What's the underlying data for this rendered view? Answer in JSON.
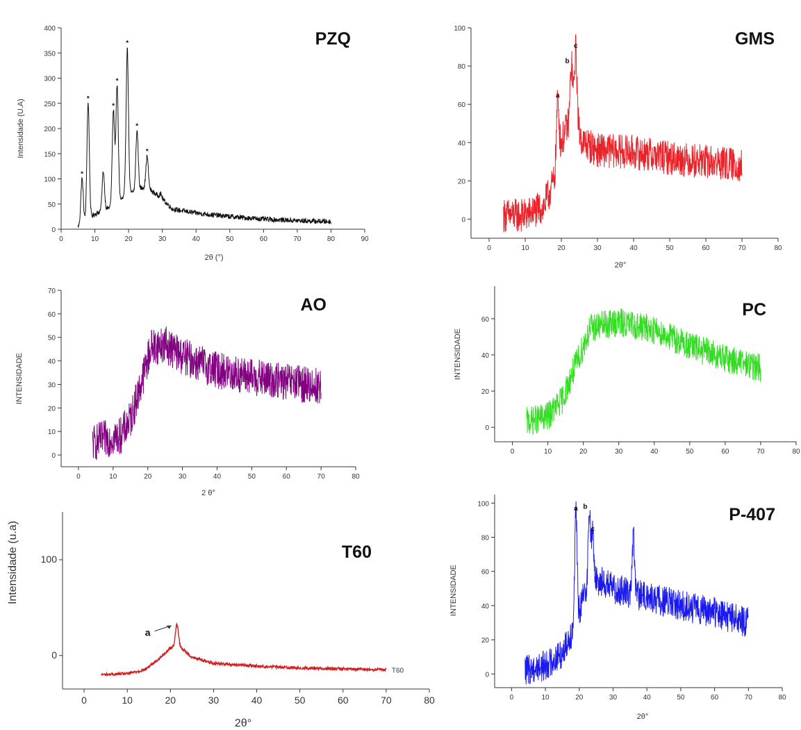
{
  "chart_data": [
    {
      "type": "line",
      "id": "pzq",
      "title": "PZQ",
      "xlabel": "2θ (°)",
      "ylabel": "Intensidade (U.A)",
      "xlim": [
        0,
        90
      ],
      "ylim": [
        0,
        400
      ],
      "xticks": [
        0,
        10,
        20,
        30,
        40,
        50,
        60,
        70,
        80,
        90
      ],
      "yticks": [
        0,
        50,
        100,
        150,
        200,
        250,
        300,
        350,
        400
      ],
      "color": "#111111",
      "x_range": [
        5,
        80
      ],
      "peaks": [
        {
          "x": 6.2,
          "y": 100,
          "label": "*"
        },
        {
          "x": 8.0,
          "y": 250,
          "label": "*"
        },
        {
          "x": 12.5,
          "y": 115,
          "label": ""
        },
        {
          "x": 15.5,
          "y": 235,
          "label": "*"
        },
        {
          "x": 16.6,
          "y": 285,
          "label": "*"
        },
        {
          "x": 19.6,
          "y": 360,
          "label": "*"
        },
        {
          "x": 22.5,
          "y": 195,
          "label": "*"
        },
        {
          "x": 25.5,
          "y": 145,
          "label": "*"
        },
        {
          "x": 29.5,
          "y": 70,
          "label": ""
        }
      ],
      "baseline": [
        [
          5,
          5
        ],
        [
          10,
          30
        ],
        [
          15,
          45
        ],
        [
          20,
          70
        ],
        [
          25,
          85
        ],
        [
          30,
          60
        ],
        [
          33,
          40
        ],
        [
          40,
          32
        ],
        [
          50,
          25
        ],
        [
          60,
          20
        ],
        [
          70,
          17
        ],
        [
          80,
          15
        ]
      ],
      "noise": 5
    },
    {
      "type": "line",
      "id": "gms",
      "title": "GMS",
      "xlabel": "2θ°",
      "ylabel": "",
      "xlim": [
        -5,
        80
      ],
      "ylim": [
        -10,
        100
      ],
      "xticks": [
        0,
        10,
        20,
        30,
        40,
        50,
        60,
        70,
        80
      ],
      "yticks": [
        0,
        20,
        40,
        60,
        80,
        100
      ],
      "color": "#e8232a",
      "x_range": [
        4,
        70
      ],
      "peaks": [
        {
          "x": 19.0,
          "y": 62,
          "label": "a"
        },
        {
          "x": 22.8,
          "y": 80,
          "label": "b"
        },
        {
          "x": 24.0,
          "y": 88,
          "label": "c"
        }
      ],
      "baseline": [
        [
          4,
          2
        ],
        [
          10,
          2
        ],
        [
          15,
          6
        ],
        [
          18,
          20
        ],
        [
          20,
          40
        ],
        [
          23,
          55
        ],
        [
          26,
          40
        ],
        [
          30,
          36
        ],
        [
          40,
          35
        ],
        [
          50,
          32
        ],
        [
          60,
          30
        ],
        [
          70,
          28
        ]
      ],
      "noise": 9
    },
    {
      "type": "line",
      "id": "ao",
      "title": "AO",
      "xlabel": "2 θ°",
      "ylabel": "INTENSIDADE",
      "xlim": [
        -5,
        80
      ],
      "ylim": [
        -5,
        70
      ],
      "xticks": [
        0,
        10,
        20,
        30,
        40,
        50,
        60,
        70,
        80
      ],
      "yticks": [
        0,
        10,
        20,
        30,
        40,
        50,
        60,
        70
      ],
      "color": "#800080",
      "x_range": [
        4,
        70
      ],
      "peaks": [],
      "baseline": [
        [
          4,
          5
        ],
        [
          8,
          7
        ],
        [
          12,
          8
        ],
        [
          15,
          15
        ],
        [
          18,
          30
        ],
        [
          21,
          46
        ],
        [
          25,
          47
        ],
        [
          30,
          42
        ],
        [
          40,
          36
        ],
        [
          50,
          33
        ],
        [
          60,
          31
        ],
        [
          70,
          29
        ]
      ],
      "noise": 8
    },
    {
      "type": "line",
      "id": "pc",
      "title": "PC",
      "xlabel": "",
      "ylabel": "INTENSIDADE",
      "xlim": [
        -5,
        80
      ],
      "ylim": [
        -8,
        78
      ],
      "xticks": [
        0,
        10,
        20,
        30,
        40,
        50,
        60,
        70,
        80
      ],
      "yticks": [
        0,
        20,
        40,
        60
      ],
      "color": "#33dd22",
      "x_range": [
        4,
        70
      ],
      "peaks": [],
      "baseline": [
        [
          4,
          3
        ],
        [
          10,
          6
        ],
        [
          14,
          15
        ],
        [
          18,
          35
        ],
        [
          22,
          55
        ],
        [
          30,
          58
        ],
        [
          40,
          54
        ],
        [
          50,
          45
        ],
        [
          60,
          38
        ],
        [
          70,
          33
        ]
      ],
      "noise": 8
    },
    {
      "type": "line",
      "id": "t60",
      "title": "T60",
      "xlabel": "2θ°",
      "ylabel": "Intensidade (u.a)",
      "xlim": [
        -5,
        80
      ],
      "ylim": [
        -35,
        150
      ],
      "xticks": [
        0,
        10,
        20,
        30,
        40,
        50,
        60,
        70,
        80
      ],
      "yticks": [
        0,
        100
      ],
      "color": "#d21f1f",
      "x_range": [
        4,
        70
      ],
      "series_label": "T60",
      "peaks": [
        {
          "x": 21.5,
          "y": 32,
          "label": "a"
        }
      ],
      "baseline": [
        [
          4,
          -20
        ],
        [
          10,
          -19
        ],
        [
          14,
          -15
        ],
        [
          17,
          -5
        ],
        [
          20,
          8
        ],
        [
          22,
          10
        ],
        [
          25,
          -2
        ],
        [
          30,
          -8
        ],
        [
          40,
          -11
        ],
        [
          50,
          -13
        ],
        [
          60,
          -14
        ],
        [
          70,
          -15
        ]
      ],
      "noise": 1.5
    },
    {
      "type": "line",
      "id": "p407",
      "title": "P-407",
      "xlabel": "2θ°",
      "ylabel": "INTENSIDADE",
      "xlim": [
        -5,
        80
      ],
      "ylim": [
        -8,
        105
      ],
      "xticks": [
        0,
        10,
        20,
        30,
        40,
        50,
        60,
        70,
        80
      ],
      "yticks": [
        0,
        20,
        40,
        60,
        80,
        100
      ],
      "color": "#1a1aee",
      "x_range": [
        4,
        70
      ],
      "peaks": [
        {
          "x": 19.0,
          "y": 94,
          "label": "a"
        },
        {
          "x": 23.0,
          "y": 95,
          "label": "b"
        },
        {
          "x": 24.0,
          "y": 82,
          "label": "c"
        },
        {
          "x": 36.0,
          "y": 80,
          "label": ""
        }
      ],
      "baseline": [
        [
          4,
          2
        ],
        [
          10,
          5
        ],
        [
          15,
          12
        ],
        [
          19,
          30
        ],
        [
          22,
          50
        ],
        [
          26,
          55
        ],
        [
          30,
          50
        ],
        [
          40,
          45
        ],
        [
          50,
          40
        ],
        [
          60,
          36
        ],
        [
          70,
          30
        ]
      ],
      "noise": 9
    }
  ]
}
